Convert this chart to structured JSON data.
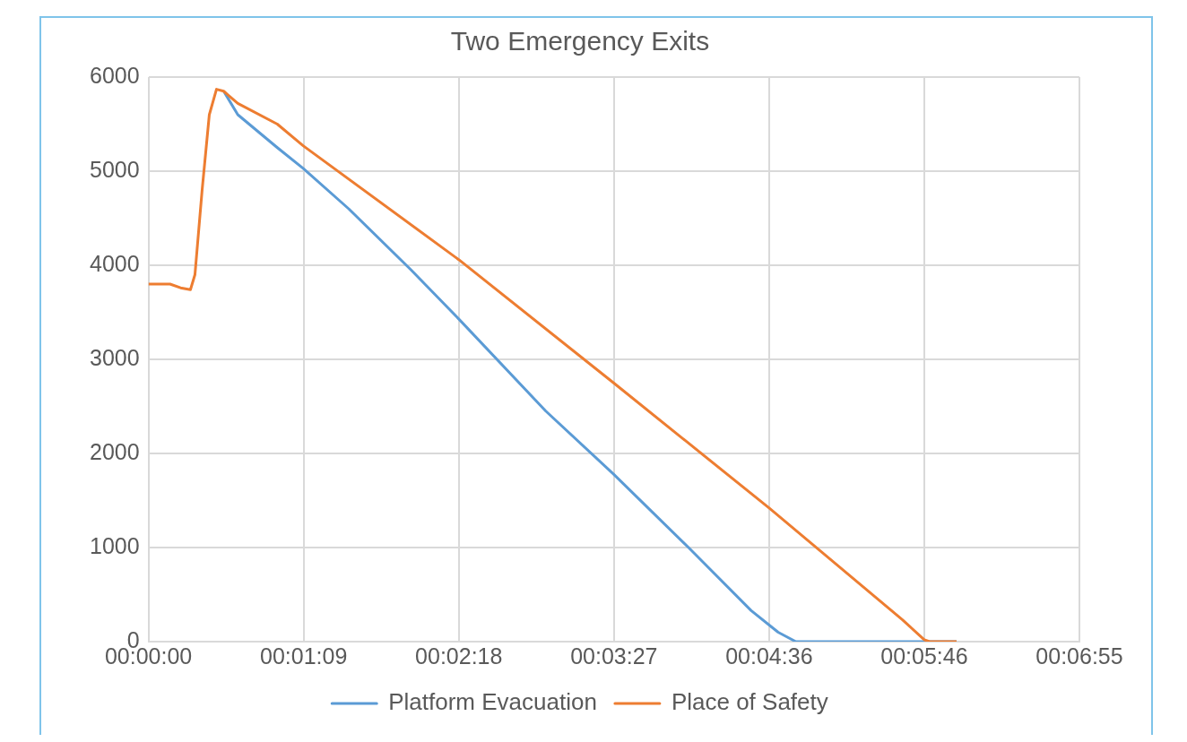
{
  "chart_data": {
    "type": "line",
    "title": "Two Emergency Exits",
    "series": [
      {
        "name": "Platform Evacuation",
        "color": "#5b9bd5",
        "x": [
          33.5,
          39.8,
          57.4,
          68.9,
          89.2,
          117,
          138.2,
          177,
          207.2,
          240.6,
          268.5,
          280.5,
          288.4,
          336,
          360
        ],
        "values": [
          5850,
          5600,
          5250,
          5030,
          4600,
          3950,
          3430,
          2450,
          1780,
          1000,
          330,
          100,
          0,
          0,
          0
        ]
      },
      {
        "name": "Place of Safety",
        "color": "#ed7d31",
        "x": [
          0,
          9.6,
          14.3,
          18.7,
          20.7,
          23.9,
          27.1,
          30.3,
          33.5,
          39.8,
          57.4,
          68.9,
          138.2,
          207.2,
          276.5,
          336,
          345.6,
          348,
          360
        ],
        "values": [
          3800,
          3800,
          3760,
          3740,
          3900,
          4800,
          5600,
          5870,
          5850,
          5720,
          5500,
          5270,
          4060,
          2750,
          1420,
          230,
          20,
          0,
          0
        ]
      }
    ],
    "xlim": [
      0,
      414.72
    ],
    "xticks": [
      {
        "value": 0,
        "label": "00:00:00"
      },
      {
        "value": 69.12,
        "label": "00:01:09"
      },
      {
        "value": 138.24,
        "label": "00:02:18"
      },
      {
        "value": 207.36,
        "label": "00:03:27"
      },
      {
        "value": 276.48,
        "label": "00:04:36"
      },
      {
        "value": 345.6,
        "label": "00:05:46"
      },
      {
        "value": 414.72,
        "label": "00:06:55"
      }
    ],
    "ylim": [
      0,
      6000
    ],
    "yticks": [
      0,
      1000,
      2000,
      3000,
      4000,
      5000,
      6000
    ],
    "grid": true,
    "legend": "bottom",
    "marker": "none",
    "line_style": "solid"
  }
}
